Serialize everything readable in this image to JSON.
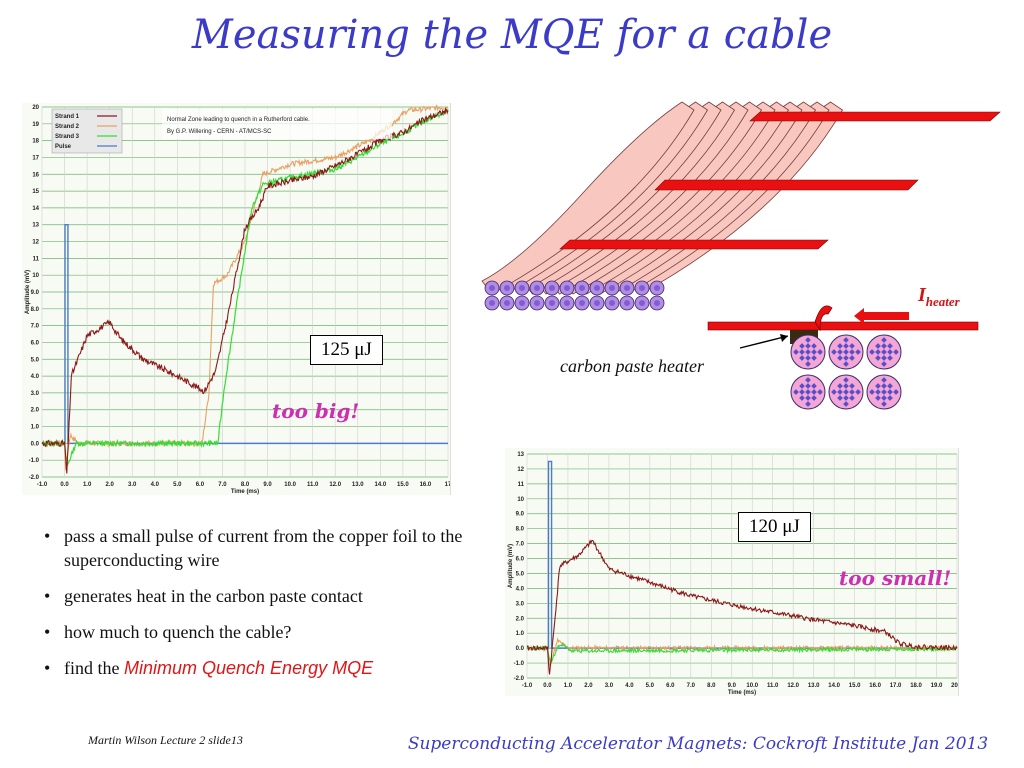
{
  "title": "Measuring the MQE for a cable",
  "chart_top": {
    "legend": [
      "Strand 1",
      "Strand 2",
      "Strand 3",
      "Pulse"
    ],
    "annotation": [
      "Normal Zone leading to quench in a Rutherford cable.",
      "By G.P. Willering - CERN - AT/MCS-SC"
    ],
    "ylabel": "Amplitude (mV)",
    "xlabel": "Time (ms)",
    "yticks": [
      "20",
      "19",
      "18",
      "17",
      "16",
      "15",
      "14",
      "13",
      "12",
      "11",
      "10",
      "9.0",
      "8.0",
      "7.0",
      "6.0",
      "5.0",
      "4.0",
      "3.0",
      "2.0",
      "1.0",
      "0.0",
      "-1.0",
      "-2.0"
    ],
    "xticks": [
      "-1.0",
      "0.0",
      "1.0",
      "2.0",
      "3.0",
      "4.0",
      "5.0",
      "6.0",
      "7.0",
      "8.0",
      "9.0",
      "10.0",
      "11.0",
      "12.0",
      "13.0",
      "14.0",
      "15.0",
      "16.0",
      "17"
    ],
    "energy_label": "125 μJ",
    "verdict": "too big!"
  },
  "chart_bottom": {
    "ylabel": "Amplitude (mV)",
    "xlabel": "Time (ms)",
    "yticks": [
      "13",
      "12",
      "11",
      "10",
      "9.0",
      "8.0",
      "7.0",
      "6.0",
      "5.0",
      "4.0",
      "3.0",
      "2.0",
      "1.0",
      "0.0",
      "-1.0",
      "-2.0"
    ],
    "xticks": [
      "-1.0",
      "0.0",
      "1.0",
      "2.0",
      "3.0",
      "4.0",
      "5.0",
      "6.0",
      "7.0",
      "8.0",
      "9.0",
      "10.0",
      "11.0",
      "12.0",
      "13.0",
      "14.0",
      "15.0",
      "16.0",
      "17.0",
      "18.0",
      "19.0",
      "20.0"
    ],
    "energy_label": "120 μJ",
    "verdict": "too small!"
  },
  "diagram": {
    "current_label_main": "I",
    "current_label_sub": "heater",
    "caption": "carbon paste heater"
  },
  "bullets": [
    "pass a small pulse of current from the copper foil to the superconducting wire",
    "generates heat in the carbon paste contact",
    "how much to quench the cable?"
  ],
  "last_bullet": {
    "prefix": "find the ",
    "highlight": "Minimum Quench Energy MQE"
  },
  "footer": {
    "left": "Martin Wilson Lecture 2 slide13",
    "right": "Superconducting Accelerator Magnets:  Cockroft Institute Jan 2013"
  },
  "colors": {
    "title": "#3b3bc8",
    "strand1": "#8b1a1a",
    "strand2": "#e8a066",
    "strand3": "#33dd33",
    "pulse": "#4a7cc8",
    "verdict": "#cc2fb0",
    "highlight": "#e11515",
    "heater": "#e81010",
    "wire": "#f8c8c0"
  }
}
